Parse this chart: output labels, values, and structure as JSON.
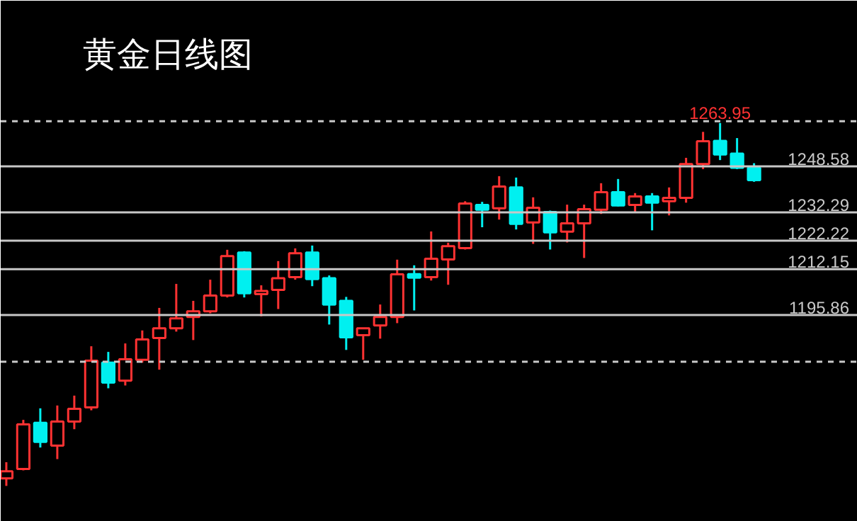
{
  "chart_data": {
    "type": "candlestick",
    "title": "黄金日线图",
    "categories": [
      null,
      null,
      null,
      null,
      null,
      null,
      null,
      null,
      null,
      null,
      null,
      null,
      null,
      null,
      null,
      null,
      null,
      null,
      null,
      null,
      null,
      null,
      null,
      null,
      null,
      null,
      null,
      null,
      null,
      null,
      null,
      null,
      null,
      null,
      null,
      null,
      null,
      null,
      null,
      null,
      null,
      null,
      null,
      null,
      null
    ],
    "ohlc": [
      [
        1138.0,
        1143.7,
        1135.3,
        1140.5
      ],
      [
        1141.3,
        1158.7,
        1140.8,
        1157.1
      ],
      [
        1157.7,
        1162.8,
        1148.9,
        1150.9
      ],
      [
        1149.6,
        1163.8,
        1144.8,
        1158.1
      ],
      [
        1158.1,
        1167.3,
        1155.4,
        1162.6
      ],
      [
        1163.1,
        1184.8,
        1162.1,
        1179.7
      ],
      [
        1179.0,
        1182.8,
        1169.9,
        1171.9
      ],
      [
        1172.6,
        1185.8,
        1170.9,
        1180.2
      ],
      [
        1180.0,
        1190.4,
        1179.0,
        1187.2
      ],
      [
        1187.7,
        1198.4,
        1176.5,
        1191.2
      ],
      [
        1191.2,
        1206.9,
        1190.0,
        1194.7
      ],
      [
        1195.2,
        1200.9,
        1187.0,
        1197.2
      ],
      [
        1197.2,
        1208.4,
        1196.5,
        1202.8
      ],
      [
        1202.8,
        1219.0,
        1202.1,
        1216.8
      ],
      [
        1218.0,
        1218.5,
        1202.1,
        1203.6
      ],
      [
        1203.3,
        1206.4,
        1195.4,
        1204.4
      ],
      [
        1204.8,
        1215.0,
        1198.0,
        1208.9
      ],
      [
        1209.3,
        1219.5,
        1208.4,
        1217.8
      ],
      [
        1218.0,
        1220.5,
        1206.1,
        1208.6
      ],
      [
        1208.9,
        1209.9,
        1192.5,
        1199.6
      ],
      [
        1200.9,
        1202.3,
        1183.5,
        1188.0
      ],
      [
        1188.7,
        1191.2,
        1180.0,
        1191.2
      ],
      [
        1192.2,
        1199.6,
        1187.5,
        1195.2
      ],
      [
        1195.2,
        1215.5,
        1193.0,
        1210.3
      ],
      [
        1210.4,
        1213.5,
        1197.5,
        1209.1
      ],
      [
        1209.3,
        1225.5,
        1208.1,
        1215.8
      ],
      [
        1215.6,
        1221.5,
        1206.6,
        1220.3
      ],
      [
        1219.6,
        1236.2,
        1219.1,
        1235.4
      ],
      [
        1234.9,
        1236.0,
        1227.0,
        1233.2
      ],
      [
        1233.7,
        1245.1,
        1229.7,
        1241.4
      ],
      [
        1241.1,
        1244.6,
        1226.2,
        1228.2
      ],
      [
        1228.7,
        1237.6,
        1221.1,
        1233.9
      ],
      [
        1232.4,
        1232.9,
        1219.1,
        1225.2
      ],
      [
        1225.4,
        1235.0,
        1221.6,
        1228.4
      ],
      [
        1228.4,
        1235.0,
        1216.1,
        1233.4
      ],
      [
        1233.2,
        1242.6,
        1231.7,
        1239.4
      ],
      [
        1239.4,
        1244.1,
        1234.4,
        1234.7
      ],
      [
        1234.9,
        1239.1,
        1232.5,
        1237.9
      ],
      [
        1237.9,
        1239.1,
        1225.9,
        1235.7
      ],
      [
        1236.2,
        1241.1,
        1231.2,
        1237.4
      ],
      [
        1237.4,
        1251.6,
        1235.7,
        1249.4
      ],
      [
        1249.4,
        1260.8,
        1247.6,
        1257.5
      ],
      [
        1257.6,
        1263.95,
        1250.8,
        1252.8
      ],
      [
        1253.1,
        1258.6,
        1247.6,
        1248.1
      ],
      [
        1248.1,
        1249.7,
        1243.1,
        1243.7
      ]
    ],
    "colors": [
      "#ff3232",
      "#ff3232",
      "#00f0f0",
      "#ff3232",
      "#ff3232",
      "#ff3232",
      "#00f0f0",
      "#ff3232",
      "#ff3232",
      "#ff3232",
      "#ff3232",
      "#ff3232",
      "#ff3232",
      "#ff3232",
      "#00f0f0",
      "#ff3232",
      "#ff3232",
      "#ff3232",
      "#00f0f0",
      "#00f0f0",
      "#00f0f0",
      "#ff3232",
      "#ff3232",
      "#ff3232",
      "#00f0f0",
      "#ff3232",
      "#ff3232",
      "#ff3232",
      "#00f0f0",
      "#ff3232",
      "#00f0f0",
      "#ff3232",
      "#00f0f0",
      "#ff3232",
      "#ff3232",
      "#ff3232",
      "#00f0f0",
      "#ff3232",
      "#00f0f0",
      "#ff3232",
      "#ff3232",
      "#ff3232",
      "#00f0f0",
      "#00f0f0",
      "#00f0f0"
    ],
    "ylim": [
      1122.6,
      1307.3
    ],
    "tick_labels": false,
    "grid": false,
    "ref_lines": [
      {
        "axis": "y",
        "value": 1248.58,
        "label": "1248.58",
        "color": "#c8c8c8"
      },
      {
        "axis": "y",
        "value": 1232.29,
        "label": "1232.29",
        "color": "#c8c8c8"
      },
      {
        "axis": "y",
        "value": 1222.22,
        "label": "1222.22",
        "color": "#c8c8c8"
      },
      {
        "axis": "y",
        "value": 1212.15,
        "label": "1212.15",
        "color": "#c8c8c8"
      },
      {
        "axis": "y",
        "value": 1195.86,
        "label": "1195.86",
        "color": "#c8c8c8"
      },
      {
        "axis": "y",
        "value": 1264.6,
        "label": null,
        "color": "#c8c8c8",
        "line_style": "dashed"
      },
      {
        "axis": "y",
        "value": 1179.3,
        "label": null,
        "color": "#c8c8c8",
        "line_style": "dashed"
      }
    ],
    "annotations": [
      {
        "text": "1263.95",
        "y": 1263.95
      }
    ]
  }
}
